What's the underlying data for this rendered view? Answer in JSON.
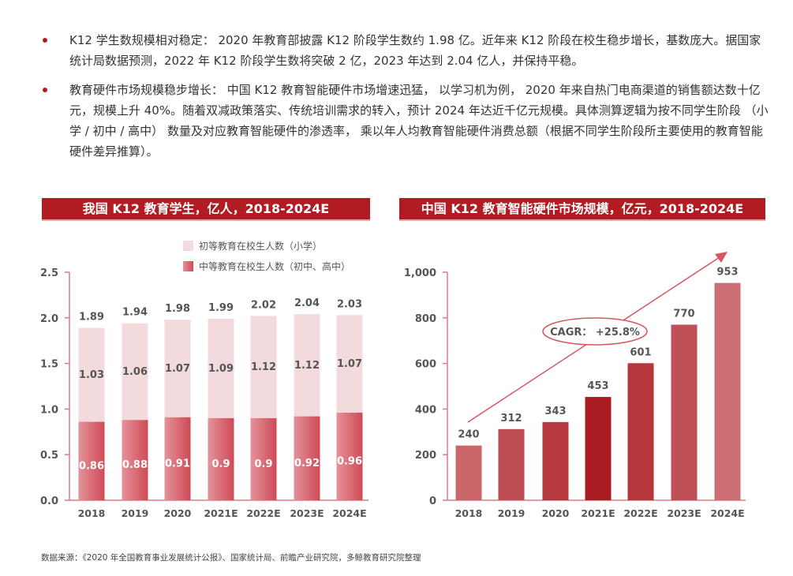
{
  "bullets": [
    {
      "text": "K12 学生数规模相对稳定： 2020 年教育部披露 K12 阶段学生数约 1.98 亿。近年来 K12 阶段在校生稳步增长，基数庞大。据国家统计局数据预测，2022 年 K12 阶段学生数将突破 2 亿，2023 年达到 2.04 亿人，并保持平稳。"
    },
    {
      "text": "教育硬件市场规模稳步增长： 中国 K12 教育智能硬件市场增速迅猛， 以学习机为例， 2020 年来自热门电商渠道的销售额达数十亿元，规模上升 40%。随着双减政策落实、传统培训需求的转入，预计 2024 年达近千亿元规模。具体测算逻辑为按不同学生阶段 （小学 / 初中 / 高中） 数量及对应教育智能硬件的渗透率， 乘以年人均教育智能硬件消费总额（根据不同学生阶段所主要使用的教育智能硬件差异推算）。"
    }
  ],
  "colors": {
    "brand": "#b01c22",
    "primary_light": "#f3dadc",
    "secondary": "#d0505c",
    "axis": "#e07a82"
  },
  "chart_data": [
    {
      "type": "bar",
      "stacked": true,
      "title": "我国 K12 教育学生，亿人，2018-2024E",
      "categories": [
        "2018",
        "2019",
        "2020",
        "2021E",
        "2022E",
        "2023E",
        "2024E"
      ],
      "series": [
        {
          "name": "中等教育在校生人数（初中、高中）",
          "values": [
            0.86,
            0.88,
            0.91,
            0.9,
            0.9,
            0.92,
            0.96
          ],
          "color": "#d0505c"
        },
        {
          "name": "初等教育在校生人数（小学）",
          "values": [
            1.03,
            1.06,
            1.07,
            1.09,
            1.12,
            1.12,
            1.07
          ],
          "color": "#f3dadc"
        }
      ],
      "totals": [
        1.89,
        1.94,
        1.98,
        1.99,
        2.02,
        2.04,
        2.03
      ],
      "yticks": [
        "0.0",
        "0.5",
        "1.0",
        "1.5",
        "2.0",
        "2.5"
      ],
      "ylim": [
        0,
        2.5
      ],
      "legend": "top-right",
      "grid": false
    },
    {
      "type": "bar",
      "title": "中国 K12 教育智能硬件市场规模，亿元，2018-2024E",
      "categories": [
        "2018",
        "2019",
        "2020",
        "2021E",
        "2022E",
        "2023E",
        "2024E"
      ],
      "values": [
        240,
        312,
        343,
        453,
        601,
        770,
        953
      ],
      "colors": [
        "#c9676b",
        "#bf4d55",
        "#b83a41",
        "#a81c22",
        "#b6363d",
        "#c05058",
        "#cc6e72"
      ],
      "yticks": [
        "0",
        "200",
        "400",
        "600",
        "800",
        "1,000"
      ],
      "ylim": [
        0,
        1000
      ],
      "annotation": "CAGR： +25.8%",
      "grid": false
    }
  ],
  "footer": "数据来源：《2020 年全国教育事业发展统计公报》、国家统计局、前瞻产业研究院，多鲸教育研究院整理"
}
